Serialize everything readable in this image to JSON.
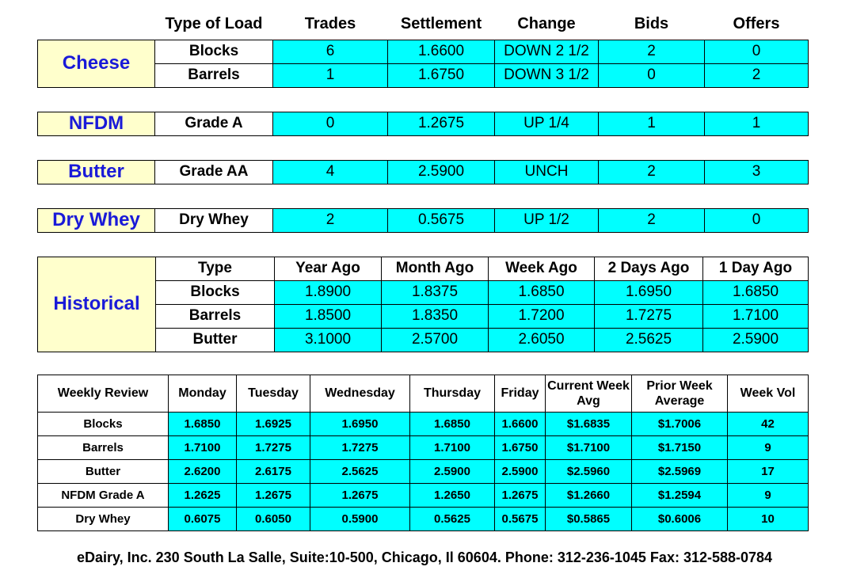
{
  "header": {
    "columns": [
      "Type of Load",
      "Trades",
      "Settlement",
      "Change",
      "Bids",
      "Offers"
    ]
  },
  "markets": [
    {
      "name": "Cheese",
      "rows": [
        [
          "Blocks",
          "6",
          "1.6600",
          "DOWN 2 1/2",
          "2",
          "0"
        ],
        [
          "Barrels",
          "1",
          "1.6750",
          "DOWN 3 1/2",
          "0",
          "2"
        ]
      ]
    },
    {
      "name": "NFDM",
      "rows": [
        [
          "Grade A",
          "0",
          "1.2675",
          "UP 1/4",
          "1",
          "1"
        ]
      ]
    },
    {
      "name": "Butter",
      "rows": [
        [
          "Grade AA",
          "4",
          "2.5900",
          "UNCH",
          "2",
          "3"
        ]
      ]
    },
    {
      "name": "Dry Whey",
      "rows": [
        [
          "Dry Whey",
          "2",
          "0.5675",
          "UP 1/2",
          "2",
          "0"
        ]
      ]
    }
  ],
  "historical": {
    "title": "Historical",
    "columns": [
      "Type",
      "Year Ago",
      "Month Ago",
      "Week Ago",
      "2 Days Ago",
      "1 Day Ago"
    ],
    "rows": [
      [
        "Blocks",
        "1.8900",
        "1.8375",
        "1.6850",
        "1.6950",
        "1.6850"
      ],
      [
        "Barrels",
        "1.8500",
        "1.8350",
        "1.7200",
        "1.7275",
        "1.7100"
      ],
      [
        "Butter",
        "3.1000",
        "2.5700",
        "2.6050",
        "2.5625",
        "2.5900"
      ]
    ]
  },
  "weekly": {
    "columns": [
      "Weekly Review",
      "Monday",
      "Tuesday",
      "Wednesday",
      "Thursday",
      "Friday",
      "Current Week Avg",
      "Prior Week Average",
      "Week Vol"
    ],
    "rows": [
      [
        "Blocks",
        "1.6850",
        "1.6925",
        "1.6950",
        "1.6850",
        "1.6600",
        "$1.6835",
        "$1.7006",
        "42"
      ],
      [
        "Barrels",
        "1.7100",
        "1.7275",
        "1.7275",
        "1.7100",
        "1.6750",
        "$1.7100",
        "$1.7150",
        "9"
      ],
      [
        "Butter",
        "2.6200",
        "2.6175",
        "2.5625",
        "2.5900",
        "2.5900",
        "$2.5960",
        "$2.5969",
        "17"
      ],
      [
        "NFDM Grade A",
        "1.2625",
        "1.2675",
        "1.2675",
        "1.2650",
        "1.2675",
        "$1.2660",
        "$1.2594",
        "9"
      ],
      [
        "Dry Whey",
        "0.6075",
        "0.6050",
        "0.5900",
        "0.5625",
        "0.5675",
        "$0.5865",
        "$0.6006",
        "10"
      ]
    ]
  },
  "footer": "eDairy, Inc. 230 South La Salle, Suite:10-500, Chicago, Il 60604. Phone: 312-236-1045 Fax: 312-588-0784"
}
